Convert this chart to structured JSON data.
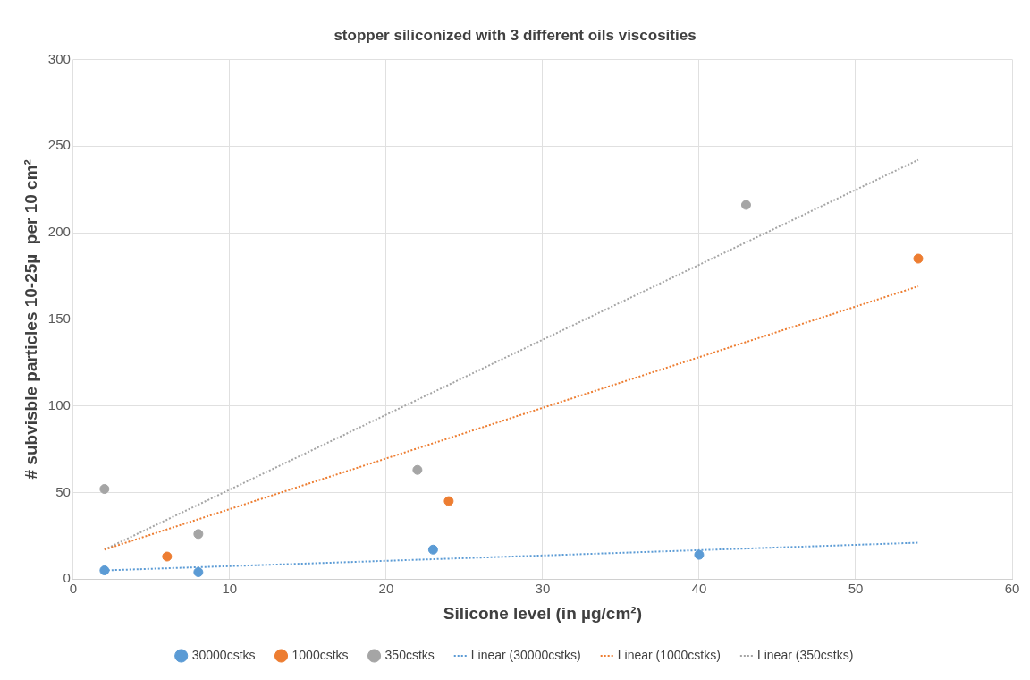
{
  "chart_data": {
    "type": "scatter",
    "title": "stopper siliconized with 3 different oils viscosities",
    "xlabel": "Silicone level (in µg/cm²)",
    "ylabel": "# subvisble particles 10-25µ  per 10 cm²",
    "xlim": [
      0,
      60
    ],
    "xticks": [
      0,
      10,
      20,
      30,
      40,
      50,
      60
    ],
    "ylim": [
      0,
      300
    ],
    "yticks": [
      0,
      50,
      100,
      150,
      200,
      250,
      300
    ],
    "grid": true,
    "legend": "bottom",
    "marker": "circle",
    "series": [
      {
        "name": "30000cstks",
        "color": "#5b9bd5",
        "x": [
          2,
          8,
          23,
          40
        ],
        "values": [
          5,
          4,
          17,
          14
        ]
      },
      {
        "name": "1000cstks",
        "color": "#ed7d31",
        "x": [
          6,
          24,
          54
        ],
        "values": [
          13,
          45,
          185
        ]
      },
      {
        "name": "350cstks",
        "color": "#a5a5a5",
        "x": [
          2,
          8,
          22,
          43
        ],
        "values": [
          52,
          26,
          63,
          216
        ]
      },
      {
        "name": "Linear (30000cstks)",
        "type": "line",
        "line_style": "dotted",
        "marker": "none",
        "color": "#5b9bd5",
        "x": [
          2,
          54
        ],
        "values": [
          5,
          21
        ]
      },
      {
        "name": "Linear (1000cstks)",
        "type": "line",
        "line_style": "dotted",
        "marker": "none",
        "color": "#ed7d31",
        "x": [
          2,
          54
        ],
        "values": [
          17,
          169
        ]
      },
      {
        "name": "Linear (350cstks)",
        "type": "line",
        "line_style": "dotted",
        "marker": "none",
        "color": "#a5a5a5",
        "x": [
          2,
          54
        ],
        "values": [
          17,
          242
        ]
      }
    ]
  }
}
